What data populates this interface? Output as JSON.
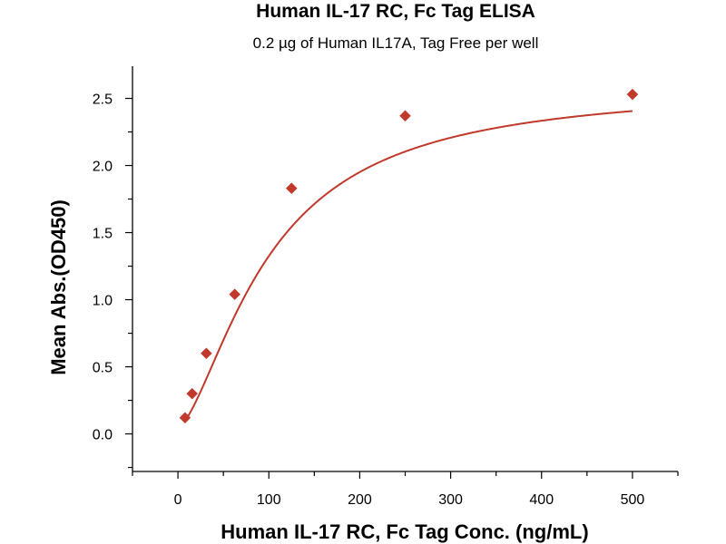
{
  "chart_data": {
    "type": "scatter",
    "title": "Human IL-17 RC, Fc Tag ELISA",
    "subtitle": "0.2 µg of Human IL17A, Tag Free per well",
    "xlabel": "Human IL-17 RC, Fc Tag Conc. (ng/mL)",
    "ylabel": "Mean Abs.(OD450)",
    "xlim": [
      -50,
      550
    ],
    "ylim": [
      -0.28,
      2.74
    ],
    "xticks": [
      0,
      100,
      200,
      300,
      400,
      500
    ],
    "xtick_labels": [
      "0",
      "100",
      "200",
      "300",
      "400",
      "500"
    ],
    "yticks": [
      0.0,
      0.5,
      1.0,
      1.5,
      2.0,
      2.5
    ],
    "ytick_labels": [
      "0.0",
      "0.5",
      "1.0",
      "1.5",
      "2.0",
      "2.5"
    ],
    "grid": false,
    "marker_color": "#c0392b",
    "curve_color": "#c0392b",
    "series": [
      {
        "marker": "diamond",
        "x": [
          7.8,
          15.6,
          31.25,
          62.5,
          125,
          250,
          500
        ],
        "y": [
          0.12,
          0.3,
          0.6,
          1.04,
          1.83,
          2.37,
          2.53
        ]
      }
    ],
    "fit": {
      "type": "4PL-like sigmoid fit",
      "x_range": [
        7.8,
        500
      ]
    }
  }
}
